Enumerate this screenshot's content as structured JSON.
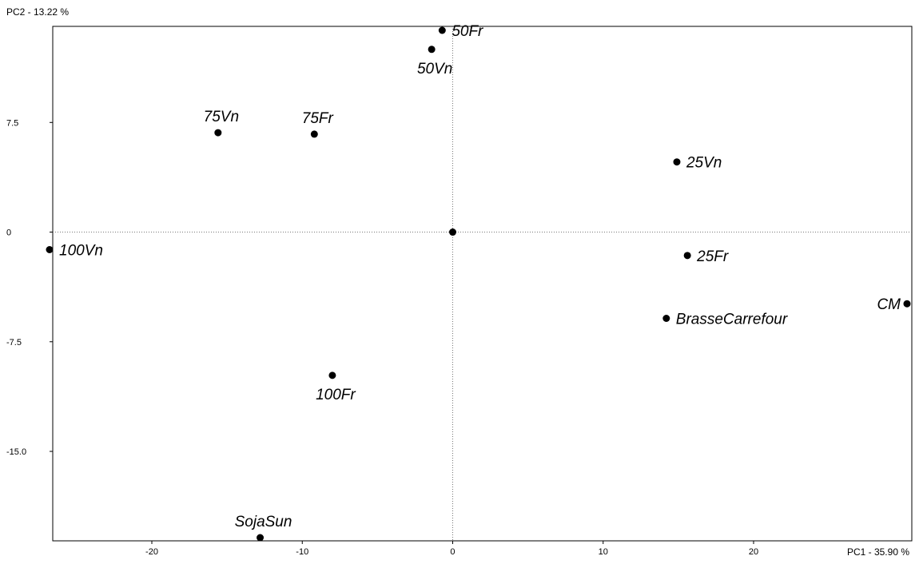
{
  "chart_data": {
    "type": "scatter",
    "xlabel": "PC1  -  35.90 %",
    "ylabel": "PC2  -  13.22 %",
    "xlim": [
      -26.8,
      30.2
    ],
    "ylim": [
      -20.9,
      13.8
    ],
    "x_ticks": [
      {
        "value": -20,
        "label": "-20"
      },
      {
        "value": -10,
        "label": "-10"
      },
      {
        "value": 0,
        "label": "0"
      },
      {
        "value": 10,
        "label": "10"
      },
      {
        "value": 20,
        "label": "20"
      }
    ],
    "y_ticks": [
      {
        "value": 7.5,
        "label": "7.5"
      },
      {
        "value": 0,
        "label": "0"
      },
      {
        "value": -7.5,
        "label": "-7.5"
      },
      {
        "value": -15,
        "label": "-15.0"
      }
    ],
    "reference_lines": {
      "x": 0,
      "y": 0
    },
    "points": [
      {
        "label": "50Fr",
        "x": -0.7,
        "y": 13.8,
        "label_pos": "right"
      },
      {
        "label": "50Vn",
        "x": -1.4,
        "y": 12.5,
        "label_pos": "below"
      },
      {
        "label": "75Vn",
        "x": -15.6,
        "y": 6.8,
        "label_pos": "above"
      },
      {
        "label": "75Fr",
        "x": -9.2,
        "y": 6.7,
        "label_pos": "above"
      },
      {
        "label": "25Vn",
        "x": 14.9,
        "y": 4.8,
        "label_pos": "right"
      },
      {
        "label": "",
        "x": 0.0,
        "y": 0.0,
        "label_pos": "none"
      },
      {
        "label": "100Vn",
        "x": -26.8,
        "y": -1.2,
        "label_pos": "right"
      },
      {
        "label": "25Fr",
        "x": 15.6,
        "y": -1.6,
        "label_pos": "right"
      },
      {
        "label": "CM",
        "x": 30.2,
        "y": -4.9,
        "label_pos": "left"
      },
      {
        "label": "BrasseCarrefour",
        "x": 14.2,
        "y": -5.9,
        "label_pos": "right"
      },
      {
        "label": "100Fr",
        "x": -8.0,
        "y": -9.8,
        "label_pos": "below"
      },
      {
        "label": "SojaSun",
        "x": -12.8,
        "y": -20.9,
        "label_pos": "above"
      }
    ],
    "grid": false,
    "legend": "none"
  }
}
